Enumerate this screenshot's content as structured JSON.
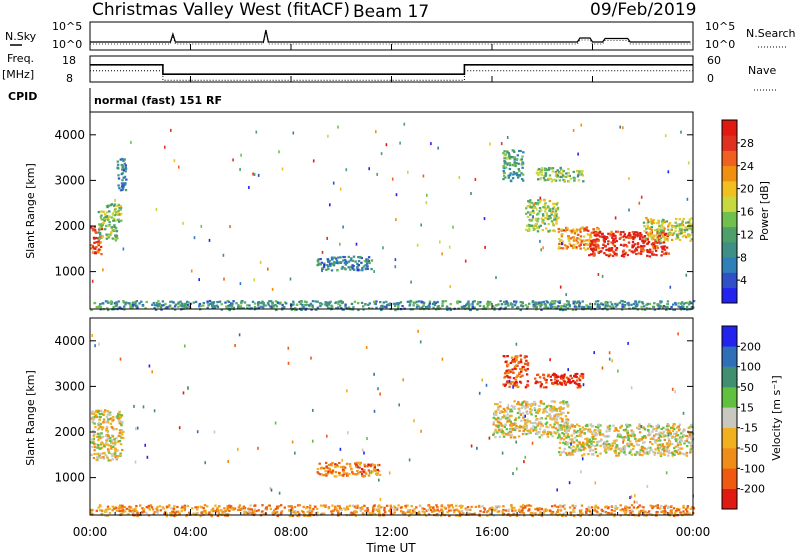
{
  "header": {
    "station": "Christmas Valley West (fitACF)",
    "beam": "Beam 17",
    "date": "09/Feb/2019"
  },
  "noise_panel": {
    "left_label": "N.Sky",
    "right_label": "N.Search",
    "left_ticks": [
      "10^5",
      "10^0"
    ],
    "right_ticks": [
      "10^5",
      "10^0"
    ]
  },
  "freq_panel": {
    "left_label_1": "Freq.",
    "left_label_2": "[MHz]",
    "right_label": "Nave",
    "left_ticks": [
      "18",
      "8"
    ],
    "right_ticks": [
      "60",
      "0"
    ],
    "ylim": [
      8,
      18
    ],
    "right_ylim": [
      0,
      60
    ]
  },
  "cpid": {
    "label": "CPID",
    "program": "normal (fast) 151 RF"
  },
  "time_axis": {
    "title": "Time UT",
    "ticks": [
      "00:00",
      "04:00",
      "08:00",
      "12:00",
      "16:00",
      "20:00",
      "00:00"
    ],
    "xlim_hours": [
      0,
      24
    ]
  },
  "chart_data": [
    {
      "type": "line",
      "title": "",
      "xlabel": "Time UT",
      "ylabel": "Frequency [MHz]",
      "ylim": [
        8,
        18
      ],
      "series": [
        {
          "x": [
            0,
            2.9,
            2.9,
            14.9,
            14.9,
            24
          ],
          "values": [
            14.6,
            14.6,
            11.0,
            11.0,
            14.6,
            14.6
          ]
        }
      ]
    },
    {
      "type": "heatmap",
      "title": "",
      "xlabel": "Time UT",
      "ylabel": "Slant Range [km]",
      "xlim": [
        0,
        24
      ],
      "ylim": [
        180,
        4500
      ],
      "y_ticks": [
        "4000",
        "3000",
        "2000",
        "1000"
      ],
      "colorbar": {
        "label": "Power [dB]",
        "ticks": [
          "28",
          "24",
          "20",
          "16",
          "12",
          "8",
          "4"
        ],
        "colors": [
          "#2323f0",
          "#3050c8",
          "#2f7fb8",
          "#3f8f86",
          "#4f9f6a",
          "#70c050",
          "#c8d840",
          "#f0c020",
          "#f09010",
          "#f06020",
          "#e03020",
          "#e01a10"
        ]
      },
      "regions": [
        {
          "t0": 0.0,
          "t1": 0.45,
          "r0": 1400,
          "r1": 2000,
          "level": 0.85
        },
        {
          "t0": 0.3,
          "t1": 1.2,
          "r0": 1700,
          "r1": 2500,
          "level": 0.45
        },
        {
          "t0": 1.0,
          "t1": 1.4,
          "r0": 2800,
          "r1": 3500,
          "level": 0.25
        },
        {
          "t0": 9.0,
          "t1": 11.2,
          "r0": 1050,
          "r1": 1350,
          "level": 0.25
        },
        {
          "t0": 16.4,
          "t1": 17.2,
          "r0": 3000,
          "r1": 3700,
          "level": 0.35
        },
        {
          "t0": 17.6,
          "t1": 19.6,
          "r0": 3000,
          "r1": 3300,
          "level": 0.45
        },
        {
          "t0": 17.3,
          "t1": 18.6,
          "r0": 1900,
          "r1": 2600,
          "level": 0.5
        },
        {
          "t0": 18.6,
          "t1": 20.2,
          "r0": 1500,
          "r1": 2000,
          "level": 0.7
        },
        {
          "t0": 19.8,
          "t1": 23.0,
          "r0": 1350,
          "r1": 1900,
          "level": 0.92
        },
        {
          "t0": 22.0,
          "t1": 24.0,
          "r0": 1700,
          "r1": 2200,
          "level": 0.55
        },
        {
          "t0": 0.0,
          "t1": 24.0,
          "r0": 180,
          "r1": 380,
          "level": 0.3
        }
      ]
    },
    {
      "type": "heatmap",
      "title": "",
      "xlabel": "Time UT",
      "ylabel": "Slant Range [km]",
      "xlim": [
        0,
        24
      ],
      "ylim": [
        180,
        4500
      ],
      "y_ticks": [
        "4000",
        "3000",
        "2000",
        "1000"
      ],
      "colorbar": {
        "label": "Velocity [m s⁻¹]",
        "ticks": [
          "200",
          "100",
          "50",
          "15",
          "-15",
          "-50",
          "-100",
          "-200"
        ],
        "colors": [
          "#e01a10",
          "#f05a10",
          "#f08c18",
          "#f0b020",
          "#c8c8c0",
          "#60c040",
          "#3f8f70",
          "#2f6fb8",
          "#2323f0"
        ]
      },
      "regions": [
        {
          "t0": 0.0,
          "t1": 1.3,
          "r0": 1400,
          "r1": 2500,
          "level": 0.45
        },
        {
          "t0": 9.0,
          "t1": 11.5,
          "r0": 1050,
          "r1": 1350,
          "level": 0.25
        },
        {
          "t0": 16.4,
          "t1": 17.4,
          "r0": 3000,
          "r1": 3700,
          "level": 0.15
        },
        {
          "t0": 17.6,
          "t1": 19.6,
          "r0": 3000,
          "r1": 3300,
          "level": 0.05
        },
        {
          "t0": 16.0,
          "t1": 19.0,
          "r0": 1900,
          "r1": 2700,
          "level": 0.45
        },
        {
          "t0": 18.6,
          "t1": 24.0,
          "r0": 1500,
          "r1": 2200,
          "level": 0.45
        },
        {
          "t0": 0.0,
          "t1": 24.0,
          "r0": 180,
          "r1": 420,
          "level": 0.3
        }
      ]
    }
  ]
}
